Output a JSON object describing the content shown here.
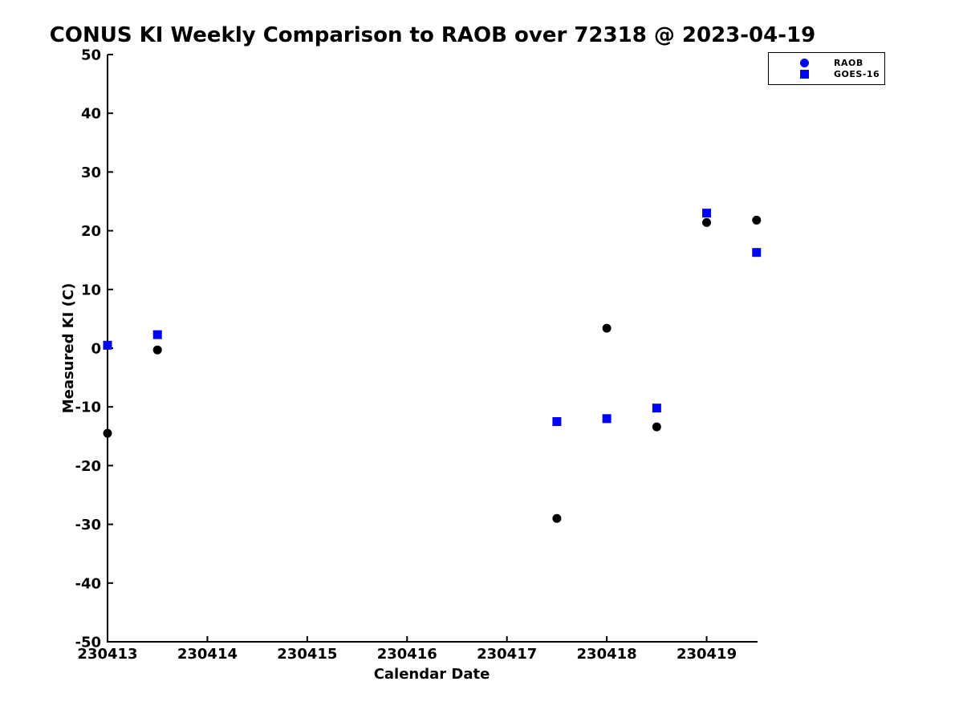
{
  "chart_data": {
    "type": "scatter",
    "title": "CONUS KI Weekly Comparison to RAOB over 72318 @ 2023-04-19",
    "xlabel": "Calendar Date",
    "ylabel": "Measured KI (C)",
    "xlim": [
      230413,
      230419.51
    ],
    "ylim": [
      -50,
      50
    ],
    "x_ticks": [
      230413,
      230414,
      230415,
      230416,
      230417,
      230418,
      230419
    ],
    "x_tick_labels": [
      "230413",
      "230414",
      "230415",
      "230416",
      "230417",
      "230418",
      "230419"
    ],
    "y_ticks": [
      50,
      40,
      30,
      20,
      10,
      0,
      -10,
      -20,
      -30,
      -40,
      -50
    ],
    "y_tick_labels": [
      "50",
      "40",
      "30",
      "20",
      "10",
      "0",
      "-10",
      "-20",
      "-30",
      "-40",
      "-50"
    ],
    "grid": false,
    "legend_position": "top-right-outside-plot",
    "axis_color": "#000000",
    "background_color": "#ffffff",
    "series": [
      {
        "name": "RAOB",
        "marker": "circle",
        "marker_size": 11,
        "data_color": "#000000",
        "legend_color": "#0000ff",
        "points": [
          [
            230413.0,
            -14.5
          ],
          [
            230413.5,
            -0.3
          ],
          [
            230417.5,
            -29.0
          ],
          [
            230418.0,
            3.4
          ],
          [
            230418.5,
            -13.4
          ],
          [
            230419.0,
            21.4
          ],
          [
            230419.5,
            21.8
          ]
        ]
      },
      {
        "name": "GOES-16",
        "marker": "square",
        "marker_size": 11,
        "data_color": "#0000ff",
        "legend_color": "#0000ff",
        "points": [
          [
            230413.0,
            0.5
          ],
          [
            230413.5,
            2.3
          ],
          [
            230417.5,
            -12.5
          ],
          [
            230418.0,
            -12.0
          ],
          [
            230418.5,
            -10.2
          ],
          [
            230419.0,
            23.0
          ],
          [
            230419.5,
            16.3
          ]
        ]
      }
    ]
  }
}
